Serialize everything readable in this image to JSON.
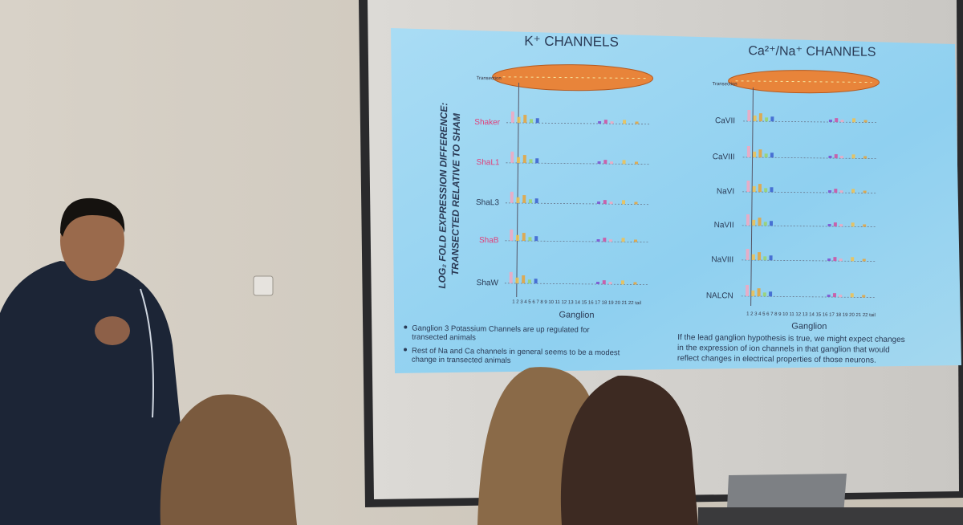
{
  "slide": {
    "left_panel": {
      "title": "K⁺ CHANNELS",
      "transection_label": "Transection",
      "channels": [
        "Shaker",
        "ShaL1",
        "ShaL3",
        "ShaB",
        "ShaW"
      ],
      "x_ticks": "1 2 3 4 5 6 7 8 9 10 11 12 13 14 15 16 17 18 19 20 21 22 tail",
      "x_label": "Ganglion"
    },
    "right_panel": {
      "title": "Ca²⁺/Na⁺ CHANNELS",
      "transection_label": "Transection",
      "channels": [
        "CaVII",
        "CaVIII",
        "NaVI",
        "NaVII",
        "NaVIII",
        "NALCN"
      ],
      "x_ticks": "1 2 3 4 5 6 7 8 9 10 11 12 13 14 15 16 17 18 19 20 21 22 tail",
      "x_label": "Ganglion"
    },
    "y_axis_label": [
      "LOG₂ FOLD EXPRESSION DIFFERENCE:",
      "TRANSECTED RELATIVE TO SHAM"
    ],
    "bullets": [
      [
        "Ganglion 3 Potassium Channels are up regulated for",
        "transected animals"
      ],
      [
        "Rest of Na and Ca channels in general seems to be a modest",
        "change in transected animals"
      ]
    ],
    "note": [
      "If the lead ganglion hypothesis is true, we might expect changes",
      "in the expression of ion channels in that ganglion that would",
      "reflect changes in electrical properties of those neurons."
    ]
  }
}
